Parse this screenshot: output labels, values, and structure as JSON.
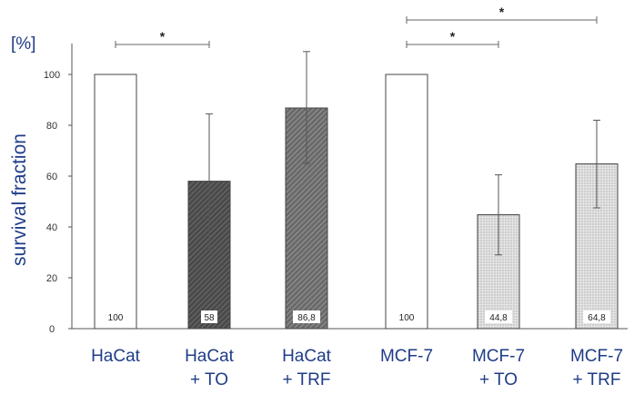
{
  "chart_data": {
    "type": "bar",
    "unit_label": "[%]",
    "ylabel": "survival fraction",
    "ylim": [
      0,
      110
    ],
    "yticks": [
      0,
      20,
      40,
      60,
      80,
      100
    ],
    "categories": [
      [
        "HaCat"
      ],
      [
        "HaCat",
        "+ TO"
      ],
      [
        "HaCat",
        "+ TRF"
      ],
      [
        "MCF-7"
      ],
      [
        "MCF-7",
        "+ TO"
      ],
      [
        "MCF-7",
        "+ TRF"
      ]
    ],
    "values": [
      100,
      58,
      86.8,
      100,
      44.8,
      64.8
    ],
    "value_labels": [
      "100",
      "58",
      "86,8",
      "100",
      "44,8",
      "64,8"
    ],
    "error_low": [
      null,
      31,
      65,
      null,
      29,
      47.5
    ],
    "error_high": [
      null,
      84.5,
      109,
      null,
      60.5,
      82
    ],
    "bar_styles": [
      "white",
      "dark-hatch",
      "medium-hatch",
      "white",
      "light-dots",
      "light-dots"
    ],
    "significance": [
      {
        "from": 0,
        "to": 1,
        "label": "*"
      },
      {
        "from": 3,
        "to": 4,
        "label": "*"
      },
      {
        "from": 3,
        "to": 5,
        "label": "*"
      }
    ],
    "grid": false,
    "legend": "none"
  },
  "colors": {
    "axis_label": "#1f3c88",
    "bar_outline": "#444444",
    "dark_bar": "#505050",
    "medium_bar": "#7a7a7a",
    "light_bar": "#d6d6d6"
  }
}
